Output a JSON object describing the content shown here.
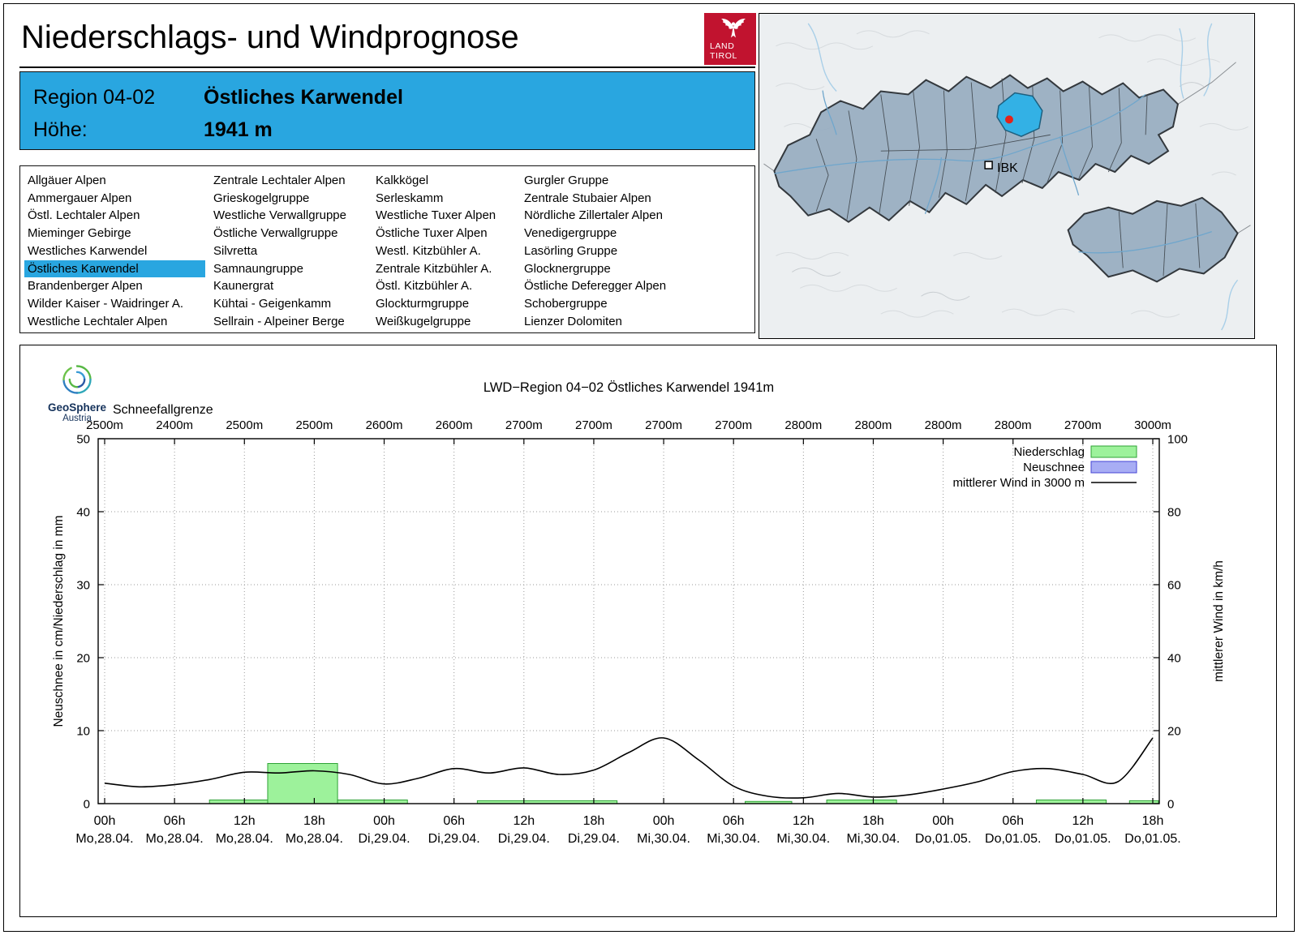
{
  "header": {
    "title": "Niederschlags- und Windprognose",
    "logo": {
      "line1": "LAND",
      "line2": "TIROL",
      "color": "#c1132f"
    }
  },
  "region_info": {
    "region_label": "Region 04-02",
    "region_name": "Östliches Karwendel",
    "elevation_label": "Höhe:",
    "elevation_value": "1941 m",
    "bg_color": "#29a6e0"
  },
  "region_list": {
    "selected": "Östliches Karwendel",
    "columns": [
      [
        "Allgäuer Alpen",
        "Ammergauer Alpen",
        "Östl. Lechtaler Alpen",
        "Mieminger Gebirge",
        "Westliches Karwendel",
        "Östliches Karwendel",
        "Brandenberger Alpen",
        "Wilder Kaiser - Waidringer A.",
        "Westliche Lechtaler Alpen"
      ],
      [
        "Zentrale Lechtaler Alpen",
        "Grieskogelgruppe",
        "Westliche Verwallgruppe",
        "Östliche Verwallgruppe",
        "Silvretta",
        "Samnaungruppe",
        "Kaunergrat",
        "Kühtai - Geigenkamm",
        "Sellrain - Alpeiner Berge"
      ],
      [
        "Kalkkögel",
        "Serleskamm",
        "Westliche Tuxer Alpen",
        "Östliche Tuxer Alpen",
        "Westl. Kitzbühler A.",
        "Zentrale Kitzbühler A.",
        "Östl. Kitzbühler A.",
        "Glockturmgruppe",
        "Weißkugelgruppe"
      ],
      [
        "Gurgler Gruppe",
        "Zentrale Stubaier Alpen",
        "Nördliche Zillertaler Alpen",
        "Venedigergruppe",
        "Lasörling Gruppe",
        "Glocknergruppe",
        "Östliche Deferegger Alpen",
        "Schobergruppe",
        "Lienzer Dolomiten"
      ]
    ]
  },
  "map": {
    "city_label": "IBK",
    "selected_region_color": "#33b1e5",
    "marker_color": "#e2231a"
  },
  "geosphere": {
    "name": "GeoSphere",
    "sub": "Austria"
  },
  "chart_data": {
    "type": "bar",
    "title": "LWD−Region 04−02 Östliches Karwendel 1941m",
    "snowline": {
      "label": "Schneefallgrenze",
      "values": [
        "2500m",
        "2400m",
        "2500m",
        "2500m",
        "2600m",
        "2600m",
        "2700m",
        "2700m",
        "2700m",
        "2700m",
        "2800m",
        "2800m",
        "2800m",
        "2800m",
        "2700m",
        "3000m"
      ]
    },
    "axes": {
      "left_label": "Neuschnee in cm/Niederschlag in mm",
      "right_label": "mittlerer Wind in km/h",
      "left_ticks": [
        0,
        10,
        20,
        30,
        40,
        50
      ],
      "right_ticks": [
        0,
        20,
        40,
        60,
        80,
        100
      ],
      "left_range": [
        0,
        50
      ],
      "right_range": [
        0,
        100
      ],
      "grid": true
    },
    "x_ticks": {
      "t": [
        0,
        6,
        12,
        18,
        24,
        30,
        36,
        42,
        48,
        54,
        60,
        66,
        72,
        78,
        84,
        90
      ],
      "hours": [
        "00h",
        "06h",
        "12h",
        "18h",
        "00h",
        "06h",
        "12h",
        "18h",
        "00h",
        "06h",
        "12h",
        "18h",
        "00h",
        "06h",
        "12h",
        "18h"
      ],
      "dates": [
        "Mo,28.04.",
        "Mo,28.04.",
        "Mo,28.04.",
        "Mo,28.04.",
        "Di,29.04.",
        "Di,29.04.",
        "Di,29.04.",
        "Di,29.04.",
        "Mi,30.04.",
        "Mi,30.04.",
        "Mi,30.04.",
        "Mi,30.04.",
        "Do,01.05.",
        "Do,01.05.",
        "Do,01.05.",
        "Do,01.05."
      ]
    },
    "legend": [
      {
        "label": "Niederschlag",
        "type": "box",
        "fill": "#9df29b",
        "stroke": "#2fa336"
      },
      {
        "label": "Neuschnee",
        "type": "box",
        "fill": "#a8adf4",
        "stroke": "#4444d4"
      },
      {
        "label": "mittlerer Wind in 3000 m",
        "type": "line",
        "stroke": "#000000"
      }
    ],
    "precipitation_mm": [
      {
        "from_h": 9,
        "to_h": 14,
        "mm": 0.5
      },
      {
        "from_h": 14,
        "to_h": 20,
        "mm": 5.5
      },
      {
        "from_h": 20,
        "to_h": 26,
        "mm": 0.5
      },
      {
        "from_h": 32,
        "to_h": 44,
        "mm": 0.4
      },
      {
        "from_h": 55,
        "to_h": 59,
        "mm": 0.3
      },
      {
        "from_h": 62,
        "to_h": 68,
        "mm": 0.5
      },
      {
        "from_h": 80,
        "to_h": 86,
        "mm": 0.5
      },
      {
        "from_h": 88,
        "to_h": 90.6,
        "mm": 0.4
      }
    ],
    "new_snow_cm": [],
    "wind_kmh": {
      "start_h": 0,
      "step_h": 3,
      "values": [
        5.6,
        4.6,
        5.2,
        6.6,
        8.6,
        8.4,
        9.0,
        8.0,
        5.4,
        7.0,
        9.6,
        8.4,
        9.8,
        8.0,
        9.2,
        14.0,
        18.0,
        12.0,
        4.8,
        2.0,
        1.6,
        2.8,
        1.8,
        2.4,
        4.0,
        6.0,
        8.8,
        9.6,
        8.0,
        6.0,
        18.0
      ]
    }
  }
}
